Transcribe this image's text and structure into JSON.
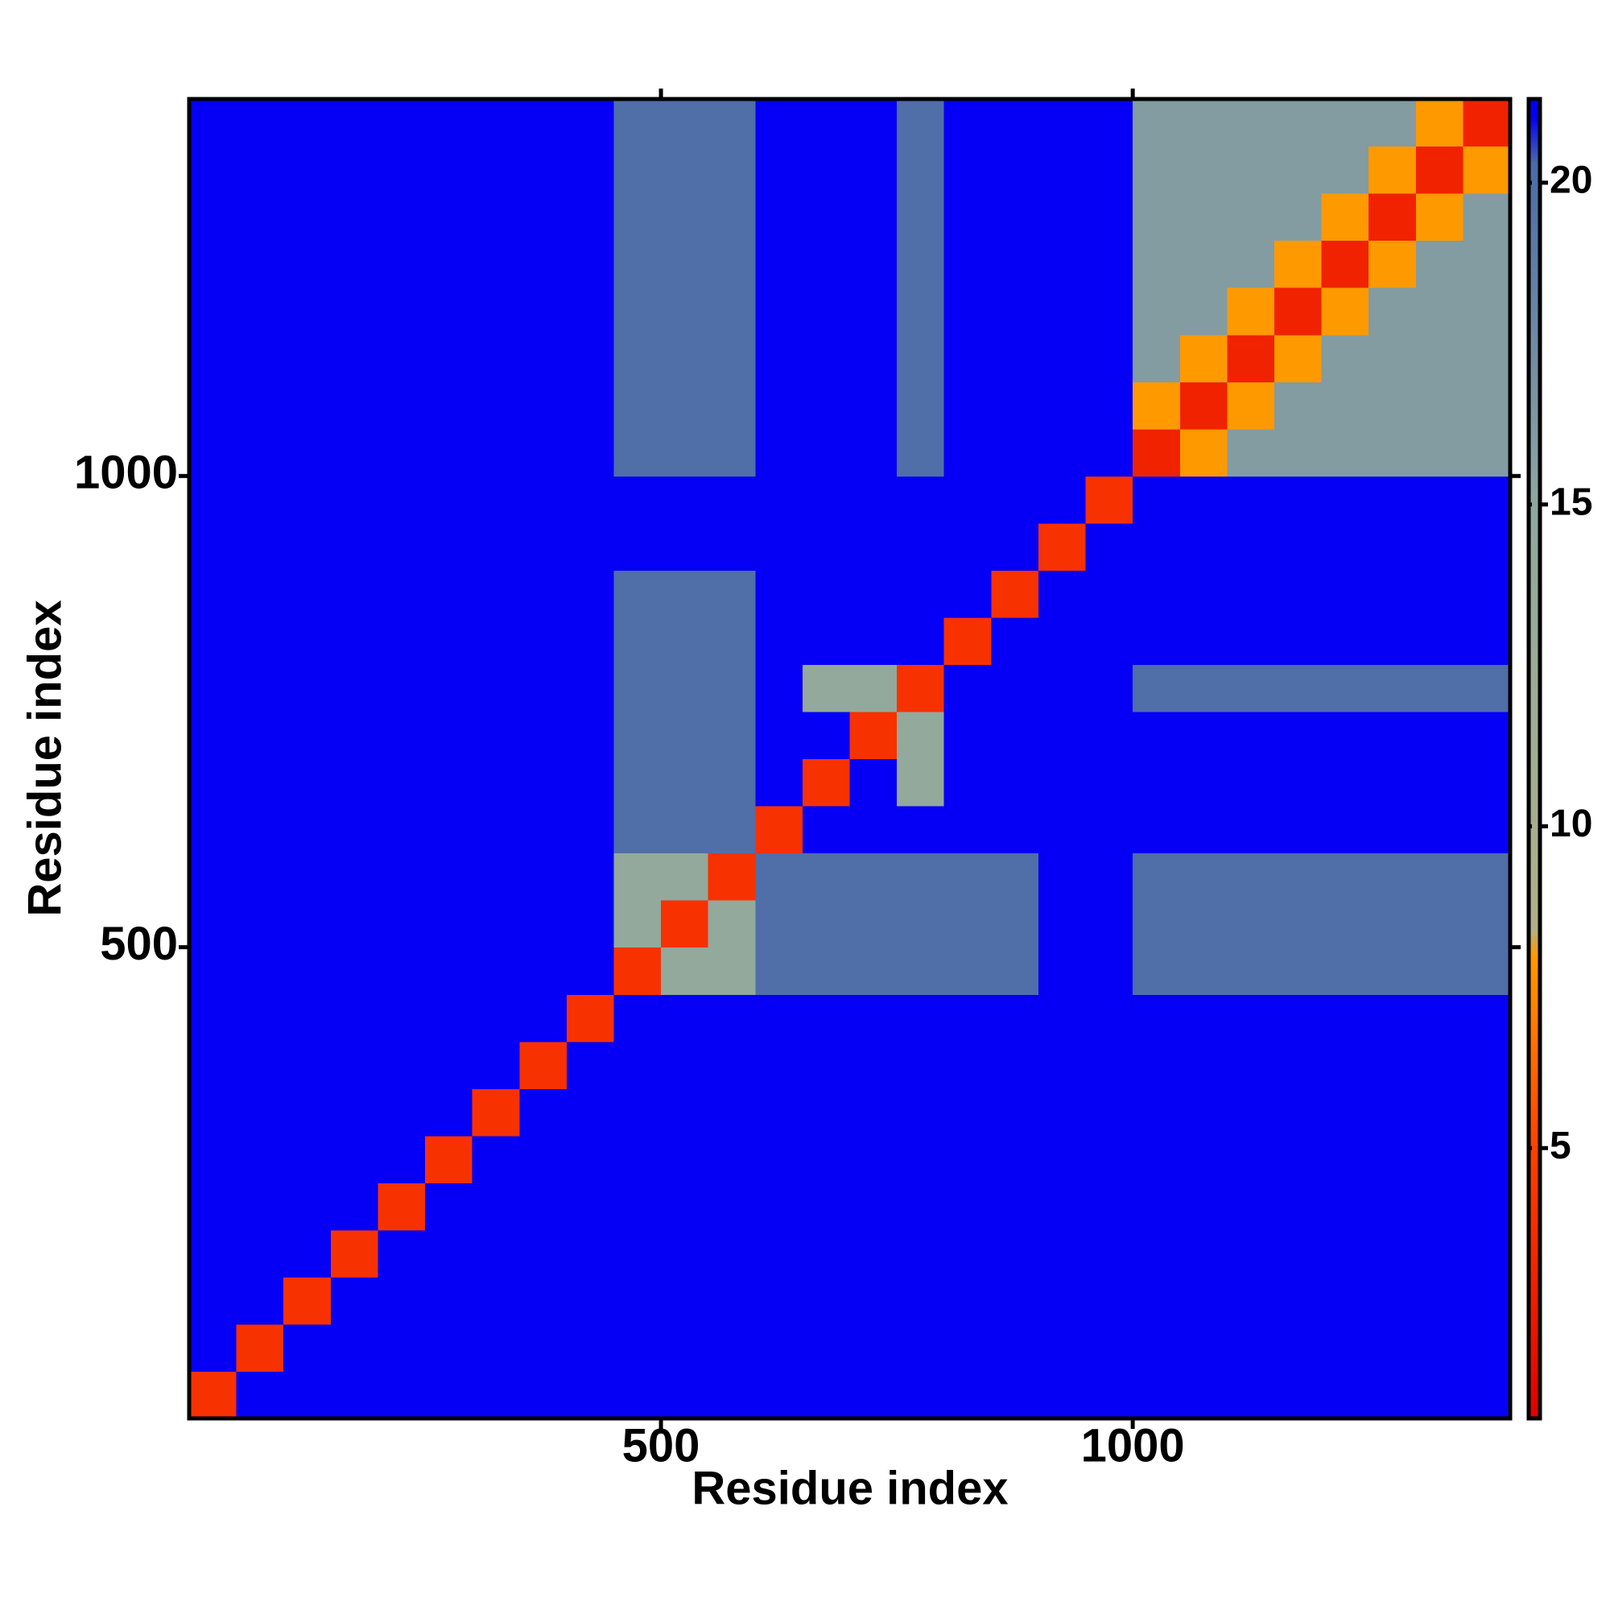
{
  "chart_data": {
    "type": "heatmap",
    "x_label": "Residue index",
    "y_label": "Residue index",
    "xlim": [
      0,
      1400
    ],
    "ylim": [
      0,
      1400
    ],
    "xticks": [
      500,
      1000
    ],
    "yticks": [
      500,
      1000
    ],
    "clim": [
      0.8,
      21.3
    ],
    "cticks": [
      5,
      10,
      15,
      20
    ],
    "colorscale": [
      [
        0.8,
        "#e00000"
      ],
      [
        5,
        "#ff4000"
      ],
      [
        8,
        "#ff9900"
      ],
      [
        8.4,
        "#b0b088"
      ],
      [
        15,
        "#8ea8a0"
      ],
      [
        20.3,
        "#4c6aa8"
      ],
      [
        21,
        "#0500f5"
      ],
      [
        21.3,
        "#0000ff"
      ]
    ],
    "values": [
      [
        4,
        21,
        21,
        21,
        21,
        21,
        21,
        21,
        21,
        21,
        21,
        21,
        21,
        21,
        21,
        21,
        21,
        21,
        21,
        21,
        21,
        21,
        21,
        21,
        21,
        21,
        21,
        21
      ],
      [
        21,
        4,
        21,
        21,
        21,
        21,
        21,
        21,
        21,
        21,
        21,
        21,
        21,
        21,
        21,
        21,
        21,
        21,
        21,
        21,
        21,
        21,
        21,
        21,
        21,
        21,
        21,
        21
      ],
      [
        21,
        21,
        4,
        21,
        21,
        21,
        21,
        21,
        21,
        21,
        21,
        21,
        21,
        21,
        21,
        21,
        21,
        21,
        21,
        21,
        21,
        21,
        21,
        21,
        21,
        21,
        21,
        21
      ],
      [
        21,
        21,
        21,
        4,
        21,
        21,
        21,
        21,
        21,
        21,
        21,
        21,
        21,
        21,
        21,
        21,
        21,
        21,
        21,
        21,
        21,
        21,
        21,
        21,
        21,
        21,
        21,
        21
      ],
      [
        21,
        21,
        21,
        21,
        4,
        21,
        21,
        21,
        21,
        21,
        21,
        21,
        21,
        21,
        21,
        21,
        21,
        21,
        21,
        21,
        21,
        21,
        21,
        21,
        21,
        21,
        21,
        21
      ],
      [
        21,
        21,
        21,
        21,
        21,
        4,
        21,
        21,
        21,
        21,
        21,
        21,
        21,
        21,
        21,
        21,
        21,
        21,
        21,
        21,
        21,
        21,
        21,
        21,
        21,
        21,
        21,
        21
      ],
      [
        21,
        21,
        21,
        21,
        21,
        21,
        4,
        21,
        21,
        21,
        21,
        21,
        21,
        21,
        21,
        21,
        21,
        21,
        21,
        21,
        21,
        21,
        21,
        21,
        21,
        21,
        21,
        21
      ],
      [
        21,
        21,
        21,
        21,
        21,
        21,
        21,
        4,
        21,
        21,
        21,
        21,
        21,
        21,
        21,
        21,
        21,
        21,
        21,
        21,
        21,
        21,
        21,
        21,
        21,
        21,
        21,
        21
      ],
      [
        21,
        21,
        21,
        21,
        21,
        21,
        21,
        21,
        4,
        21,
        21,
        21,
        21,
        21,
        21,
        21,
        21,
        21,
        21,
        21,
        21,
        21,
        21,
        21,
        21,
        21,
        21,
        21
      ],
      [
        21,
        21,
        21,
        21,
        21,
        21,
        21,
        21,
        21,
        4,
        14,
        14,
        20,
        20,
        20,
        20,
        20,
        20,
        21,
        21,
        20,
        20,
        20,
        20,
        20,
        20,
        20,
        20
      ],
      [
        21,
        21,
        21,
        21,
        21,
        21,
        21,
        21,
        21,
        14,
        4,
        14,
        20,
        20,
        20,
        20,
        20,
        20,
        21,
        21,
        20,
        20,
        20,
        20,
        20,
        20,
        20,
        20
      ],
      [
        21,
        21,
        21,
        21,
        21,
        21,
        21,
        21,
        21,
        14,
        14,
        4,
        20,
        20,
        20,
        20,
        20,
        20,
        21,
        21,
        20,
        20,
        20,
        20,
        20,
        20,
        20,
        20
      ],
      [
        21,
        21,
        21,
        21,
        21,
        21,
        21,
        21,
        21,
        20,
        20,
        20,
        4,
        21,
        21,
        21,
        21,
        21,
        21,
        21,
        21,
        21,
        21,
        21,
        21,
        21,
        21,
        21
      ],
      [
        21,
        21,
        21,
        21,
        21,
        21,
        21,
        21,
        21,
        20,
        20,
        20,
        21,
        4,
        21,
        14,
        21,
        21,
        21,
        21,
        21,
        21,
        21,
        21,
        21,
        21,
        21,
        21
      ],
      [
        21,
        21,
        21,
        21,
        21,
        21,
        21,
        21,
        21,
        20,
        20,
        20,
        21,
        21,
        4,
        14,
        21,
        21,
        21,
        21,
        21,
        21,
        21,
        21,
        21,
        21,
        21,
        21
      ],
      [
        21,
        21,
        21,
        21,
        21,
        21,
        21,
        21,
        21,
        20,
        20,
        20,
        21,
        14,
        14,
        4,
        21,
        21,
        21,
        21,
        20,
        20,
        20,
        20,
        20,
        20,
        20,
        20
      ],
      [
        21,
        21,
        21,
        21,
        21,
        21,
        21,
        21,
        21,
        20,
        20,
        20,
        21,
        21,
        21,
        21,
        4,
        21,
        21,
        21,
        21,
        21,
        21,
        21,
        21,
        21,
        21,
        21
      ],
      [
        21,
        21,
        21,
        21,
        21,
        21,
        21,
        21,
        21,
        20,
        20,
        20,
        21,
        21,
        21,
        21,
        21,
        4,
        21,
        21,
        21,
        21,
        21,
        21,
        21,
        21,
        21,
        21
      ],
      [
        21,
        21,
        21,
        21,
        21,
        21,
        21,
        21,
        21,
        21,
        21,
        21,
        21,
        21,
        21,
        21,
        21,
        21,
        4,
        21,
        21,
        21,
        21,
        21,
        21,
        21,
        21,
        21
      ],
      [
        21,
        21,
        21,
        21,
        21,
        21,
        21,
        21,
        21,
        21,
        21,
        21,
        21,
        21,
        21,
        21,
        21,
        21,
        21,
        4,
        21,
        21,
        21,
        21,
        21,
        21,
        21,
        21
      ],
      [
        21,
        21,
        21,
        21,
        21,
        21,
        21,
        21,
        21,
        20,
        20,
        20,
        21,
        21,
        21,
        20,
        21,
        21,
        21,
        21,
        3,
        8,
        16,
        16,
        16,
        16,
        16,
        16
      ],
      [
        21,
        21,
        21,
        21,
        21,
        21,
        21,
        21,
        21,
        20,
        20,
        20,
        21,
        21,
        21,
        20,
        21,
        21,
        21,
        21,
        8,
        3,
        8,
        16,
        16,
        16,
        16,
        16
      ],
      [
        21,
        21,
        21,
        21,
        21,
        21,
        21,
        21,
        21,
        20,
        20,
        20,
        21,
        21,
        21,
        20,
        21,
        21,
        21,
        21,
        16,
        8,
        3,
        8,
        16,
        16,
        16,
        16
      ],
      [
        21,
        21,
        21,
        21,
        21,
        21,
        21,
        21,
        21,
        20,
        20,
        20,
        21,
        21,
        21,
        20,
        21,
        21,
        21,
        21,
        16,
        16,
        8,
        3,
        8,
        16,
        16,
        16
      ],
      [
        21,
        21,
        21,
        21,
        21,
        21,
        21,
        21,
        21,
        20,
        20,
        20,
        21,
        21,
        21,
        20,
        21,
        21,
        21,
        21,
        16,
        16,
        16,
        8,
        3,
        8,
        16,
        16
      ],
      [
        21,
        21,
        21,
        21,
        21,
        21,
        21,
        21,
        21,
        20,
        20,
        20,
        21,
        21,
        21,
        20,
        21,
        21,
        21,
        21,
        16,
        16,
        16,
        16,
        8,
        3,
        8,
        16
      ],
      [
        21,
        21,
        21,
        21,
        21,
        21,
        21,
        21,
        21,
        20,
        20,
        20,
        21,
        21,
        21,
        20,
        21,
        21,
        21,
        21,
        16,
        16,
        16,
        16,
        16,
        8,
        3,
        8
      ],
      [
        21,
        21,
        21,
        21,
        21,
        21,
        21,
        21,
        21,
        20,
        20,
        20,
        21,
        21,
        21,
        20,
        21,
        21,
        21,
        21,
        16,
        16,
        16,
        16,
        16,
        16,
        8,
        3
      ]
    ]
  }
}
